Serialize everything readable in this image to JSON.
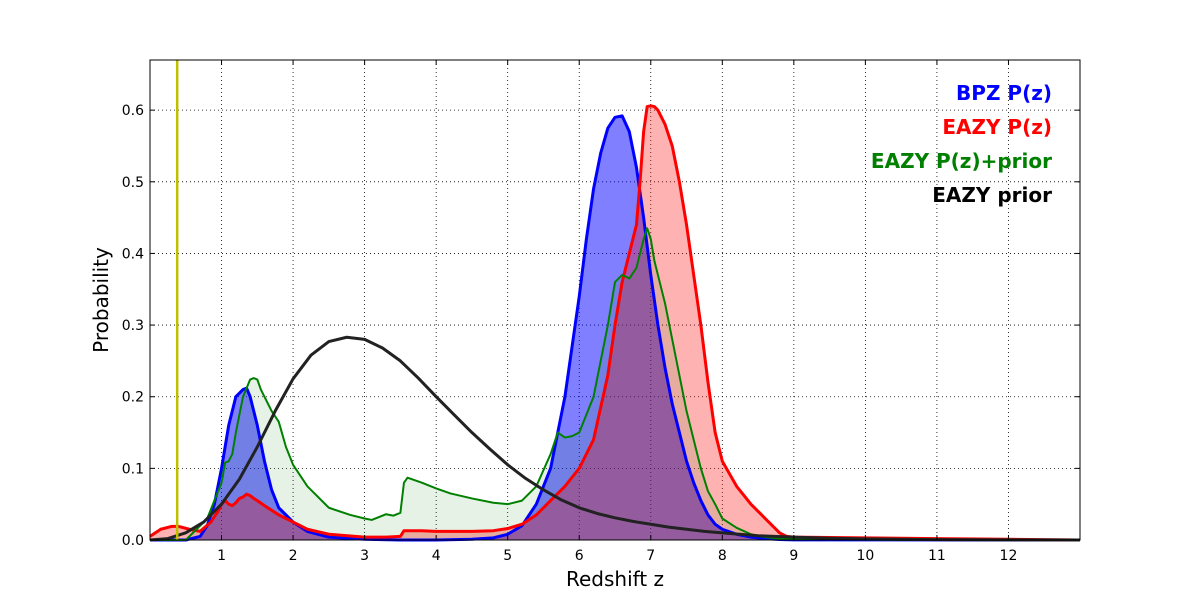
{
  "chart_data": {
    "type": "area",
    "title": "",
    "xlabel": "Redshift z",
    "ylabel": "Probability",
    "xlim": [
      0,
      13
    ],
    "ylim": [
      0,
      0.67
    ],
    "grid": true,
    "legend_position": "top-right",
    "x_ticks": [
      1,
      2,
      3,
      4,
      5,
      6,
      7,
      8,
      9,
      10,
      11,
      12
    ],
    "y_ticks": [
      0.0,
      0.1,
      0.2,
      0.3,
      0.4,
      0.5,
      0.6
    ],
    "x_tick_labels": [
      "1",
      "2",
      "3",
      "4",
      "5",
      "6",
      "7",
      "8",
      "9",
      "10",
      "11",
      "12"
    ],
    "y_tick_labels": [
      "0.0",
      "0.1",
      "0.2",
      "0.3",
      "0.4",
      "0.5",
      "0.6"
    ],
    "vertical_line": {
      "x": 0.38,
      "color": "#bfbf00"
    },
    "legend": [
      {
        "label": "BPZ P(z)",
        "color": "#0000ff"
      },
      {
        "label": "EAZY P(z)",
        "color": "#ff0000"
      },
      {
        "label": "EAZY P(z)+prior",
        "color": "#008000"
      },
      {
        "label": "EAZY prior",
        "color": "#000000"
      }
    ],
    "series": [
      {
        "name": "BPZ P(z)",
        "color": "#0000ff",
        "fill": "#0000ff",
        "fill_opacity": 0.5,
        "line_width": 3,
        "x": [
          0,
          0.5,
          0.7,
          0.8,
          0.9,
          1.0,
          1.1,
          1.2,
          1.3,
          1.35,
          1.4,
          1.5,
          1.6,
          1.7,
          1.8,
          2.0,
          2.2,
          2.5,
          3.0,
          3.5,
          4.0,
          4.5,
          4.8,
          5.0,
          5.2,
          5.4,
          5.6,
          5.8,
          6.0,
          6.1,
          6.2,
          6.3,
          6.4,
          6.5,
          6.6,
          6.7,
          6.8,
          6.9,
          7.0,
          7.1,
          7.2,
          7.3,
          7.4,
          7.5,
          7.6,
          7.7,
          7.8,
          7.9,
          8.0,
          8.2,
          8.4,
          8.6,
          8.8,
          9.0,
          13
        ],
        "y": [
          0.0,
          0.0,
          0.005,
          0.02,
          0.05,
          0.1,
          0.16,
          0.2,
          0.21,
          0.212,
          0.2,
          0.16,
          0.11,
          0.07,
          0.045,
          0.025,
          0.012,
          0.004,
          0.001,
          0.0,
          0.0,
          0.001,
          0.003,
          0.008,
          0.02,
          0.05,
          0.1,
          0.2,
          0.34,
          0.42,
          0.49,
          0.54,
          0.575,
          0.59,
          0.592,
          0.57,
          0.52,
          0.45,
          0.37,
          0.3,
          0.24,
          0.19,
          0.15,
          0.11,
          0.08,
          0.055,
          0.035,
          0.022,
          0.015,
          0.008,
          0.004,
          0.002,
          0.0007,
          0.0002,
          0.0
        ]
      },
      {
        "name": "EAZY P(z)",
        "color": "#ff0000",
        "fill": "#ff0000",
        "fill_opacity": 0.3,
        "line_width": 3,
        "x": [
          0,
          0.15,
          0.3,
          0.4,
          0.55,
          0.7,
          0.85,
          0.95,
          1.0,
          1.05,
          1.1,
          1.15,
          1.2,
          1.25,
          1.3,
          1.35,
          1.4,
          1.45,
          1.5,
          1.6,
          1.8,
          2.0,
          2.2,
          2.5,
          3.0,
          3.3,
          3.5,
          3.55,
          3.8,
          4.0,
          4.5,
          4.8,
          5.0,
          5.2,
          5.4,
          5.6,
          5.8,
          6.0,
          6.2,
          6.4,
          6.5,
          6.6,
          6.7,
          6.75,
          6.8,
          6.85,
          6.9,
          6.95,
          7.0,
          7.05,
          7.1,
          7.2,
          7.3,
          7.4,
          7.5,
          7.6,
          7.7,
          7.8,
          7.9,
          8.0,
          8.2,
          8.4,
          8.6,
          8.8,
          8.9,
          9.0,
          10.0,
          11.0,
          12.0,
          13
        ],
        "y": [
          0.005,
          0.015,
          0.019,
          0.019,
          0.015,
          0.012,
          0.025,
          0.04,
          0.05,
          0.055,
          0.05,
          0.048,
          0.052,
          0.058,
          0.06,
          0.064,
          0.062,
          0.058,
          0.055,
          0.048,
          0.035,
          0.025,
          0.015,
          0.008,
          0.004,
          0.004,
          0.005,
          0.013,
          0.013,
          0.012,
          0.012,
          0.013,
          0.016,
          0.022,
          0.035,
          0.055,
          0.075,
          0.1,
          0.14,
          0.23,
          0.3,
          0.36,
          0.4,
          0.42,
          0.44,
          0.5,
          0.57,
          0.605,
          0.606,
          0.605,
          0.6,
          0.58,
          0.55,
          0.5,
          0.44,
          0.37,
          0.3,
          0.22,
          0.15,
          0.11,
          0.075,
          0.05,
          0.03,
          0.01,
          0.005,
          0.004,
          0.003,
          0.002,
          0.001,
          0.0
        ]
      },
      {
        "name": "EAZY P(z)+prior",
        "color": "#008000",
        "fill": "#008000",
        "fill_opacity": 0.1,
        "line_width": 2,
        "x": [
          0,
          0.5,
          0.8,
          1.0,
          1.05,
          1.1,
          1.15,
          1.2,
          1.3,
          1.4,
          1.45,
          1.5,
          1.55,
          1.6,
          1.7,
          1.8,
          1.9,
          2.0,
          2.2,
          2.5,
          2.8,
          3.0,
          3.1,
          3.2,
          3.3,
          3.4,
          3.5,
          3.55,
          3.6,
          3.8,
          4.0,
          4.2,
          4.5,
          4.8,
          5.0,
          5.2,
          5.4,
          5.6,
          5.7,
          5.8,
          5.9,
          6.0,
          6.2,
          6.4,
          6.5,
          6.6,
          6.7,
          6.8,
          6.85,
          6.9,
          6.95,
          7.0,
          7.05,
          7.1,
          7.2,
          7.3,
          7.4,
          7.5,
          7.6,
          7.7,
          7.8,
          7.9,
          8.0,
          8.2,
          8.4,
          8.6,
          8.8,
          9.0,
          10.0,
          11.0,
          12.0,
          13
        ],
        "y": [
          0.0,
          0.0,
          0.03,
          0.08,
          0.108,
          0.11,
          0.12,
          0.15,
          0.2,
          0.224,
          0.226,
          0.224,
          0.21,
          0.2,
          0.18,
          0.165,
          0.13,
          0.105,
          0.075,
          0.045,
          0.035,
          0.03,
          0.028,
          0.032,
          0.036,
          0.034,
          0.038,
          0.08,
          0.087,
          0.08,
          0.072,
          0.065,
          0.058,
          0.052,
          0.05,
          0.055,
          0.075,
          0.12,
          0.15,
          0.143,
          0.145,
          0.15,
          0.2,
          0.3,
          0.36,
          0.37,
          0.365,
          0.38,
          0.4,
          0.42,
          0.435,
          0.42,
          0.39,
          0.37,
          0.33,
          0.28,
          0.23,
          0.18,
          0.14,
          0.1,
          0.068,
          0.05,
          0.03,
          0.017,
          0.008,
          0.004,
          0.002,
          0.001,
          0.0005,
          0.0002,
          0.0,
          0.0
        ]
      },
      {
        "name": "EAZY prior",
        "color": "#222222",
        "fill": "none",
        "fill_opacity": 0,
        "line_width": 3,
        "x": [
          0,
          0.25,
          0.5,
          0.75,
          1.0,
          1.25,
          1.5,
          1.75,
          2.0,
          2.25,
          2.5,
          2.75,
          3.0,
          3.25,
          3.5,
          3.75,
          4.0,
          4.25,
          4.5,
          4.75,
          5.0,
          5.25,
          5.5,
          5.75,
          6.0,
          6.25,
          6.5,
          6.75,
          7.0,
          7.25,
          7.5,
          7.75,
          8.0,
          8.5,
          9.0,
          9.5,
          10.0,
          10.5,
          11.0,
          12.0,
          13.0
        ],
        "y": [
          0.0,
          0.002,
          0.01,
          0.025,
          0.05,
          0.085,
          0.13,
          0.18,
          0.225,
          0.258,
          0.277,
          0.283,
          0.28,
          0.268,
          0.25,
          0.226,
          0.2,
          0.175,
          0.15,
          0.127,
          0.105,
          0.086,
          0.07,
          0.056,
          0.045,
          0.037,
          0.031,
          0.026,
          0.022,
          0.018,
          0.015,
          0.012,
          0.01,
          0.006,
          0.004,
          0.0025,
          0.0015,
          0.001,
          0.0006,
          0.0002,
          0.0
        ]
      }
    ]
  }
}
